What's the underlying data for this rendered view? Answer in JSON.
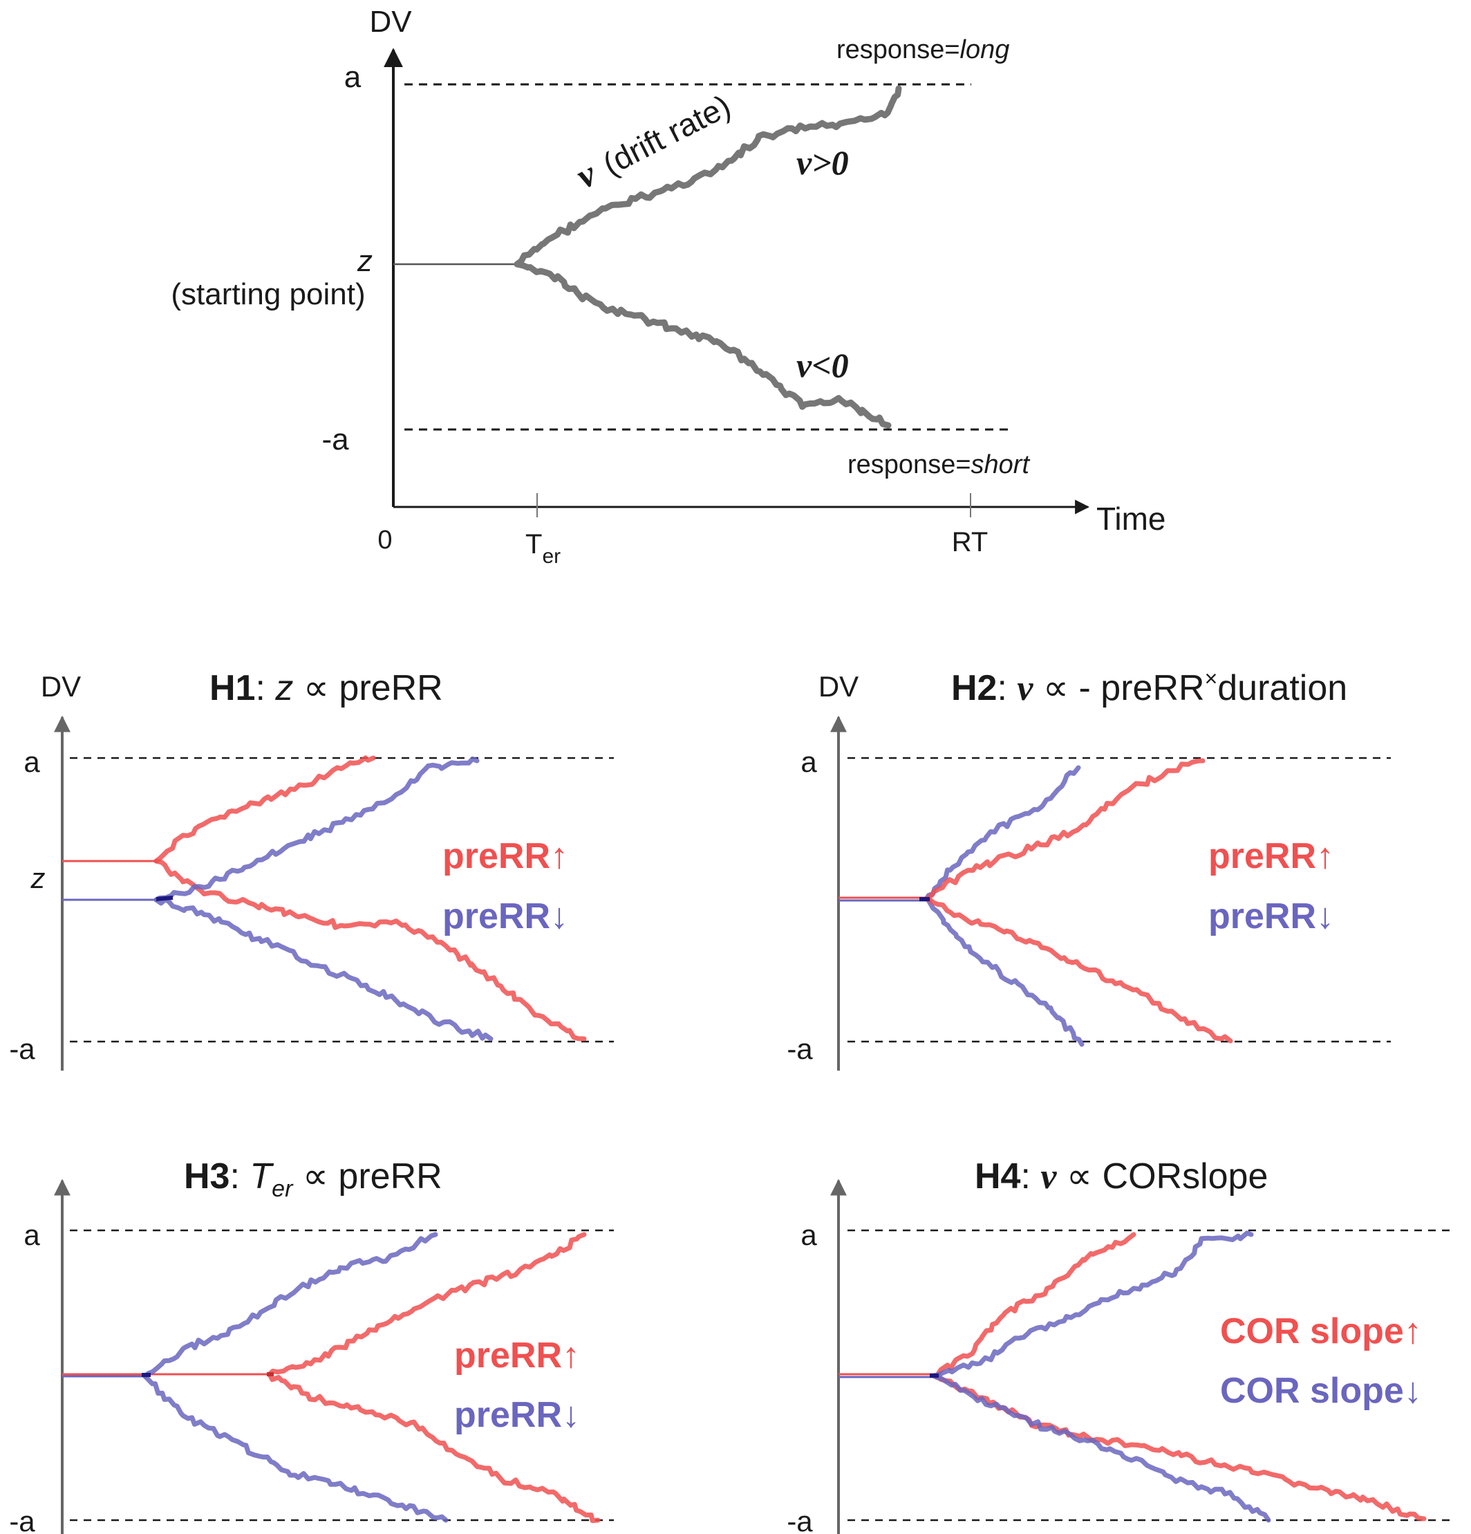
{
  "colors": {
    "axis": "#555555",
    "gray_path": "#777777",
    "red": "#f05050",
    "blue": "#6a66bf",
    "dark_blue": "#1c1880",
    "dash": "#1a1a1a"
  },
  "top": {
    "dv_label": "DV",
    "a_label": "a",
    "neg_a_label": "-a",
    "z_label": "z",
    "z_sub": "(starting point)",
    "drift_nu": "ν",
    "drift_text": "(drift rate)",
    "nu_pos": "ν>0",
    "nu_neg": "ν<0",
    "resp_long_prefix": "response=",
    "resp_long_value": "long",
    "resp_short_prefix": "response=",
    "resp_short_value": "short",
    "time_label": "Time",
    "zero_label": "0",
    "ter_T": "T",
    "ter_sub": "er",
    "rt_label": "RT"
  },
  "panels": [
    {
      "id": "h1",
      "dv_label": "DV",
      "a_label": "a",
      "neg_a_label": "-a",
      "z_label": "z",
      "title_bold": "H1",
      "title_sep": ": ",
      "title_sym": "z",
      "title_rest": " ∝ preRR",
      "legend_up": "preRR↑",
      "legend_down": "preRR↓"
    },
    {
      "id": "h2",
      "dv_label": "DV",
      "a_label": "a",
      "neg_a_label": "-a",
      "title_bold": "H2",
      "title_sep": ": ",
      "title_sym": "ν",
      "title_rest": " ∝ - preRR",
      "title_sup": "×",
      "title_tail": "duration",
      "legend_up": "preRR↑",
      "legend_down": "preRR↓"
    },
    {
      "id": "h3",
      "a_label": "a",
      "neg_a_label": "-a",
      "title_bold": "H3",
      "title_sep": ": ",
      "title_sym": "T",
      "title_sym_sub": "er",
      "title_rest": " ∝ preRR",
      "legend_up": "preRR↑",
      "legend_down": "preRR↓"
    },
    {
      "id": "h4",
      "a_label": "a",
      "neg_a_label": "-a",
      "title_bold": "H4",
      "title_sep": ": ",
      "title_sym": "ν",
      "title_rest": " ∝ CORslope",
      "legend_up": "COR slope↑",
      "legend_down": "COR slope↓"
    }
  ]
}
